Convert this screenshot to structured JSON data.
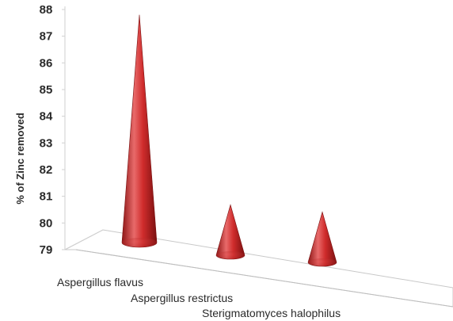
{
  "chart_data": {
    "type": "bar",
    "bar_shape": "cone",
    "view": "3d",
    "title": "",
    "xlabel": "",
    "ylabel": "% of Zinc removed",
    "categories": [
      "Aspergillus flavus",
      "Aspergillus restrictus",
      "Sterigmatomyces halophilus"
    ],
    "values": [
      87.8,
      80.8,
      80.8
    ],
    "ylim": [
      79,
      88
    ],
    "yticks": [
      "79",
      "80",
      "81",
      "82",
      "83",
      "84",
      "85",
      "86",
      "87",
      "88"
    ],
    "grid": false,
    "legend": "none",
    "bar_color": "#d42f2f"
  }
}
